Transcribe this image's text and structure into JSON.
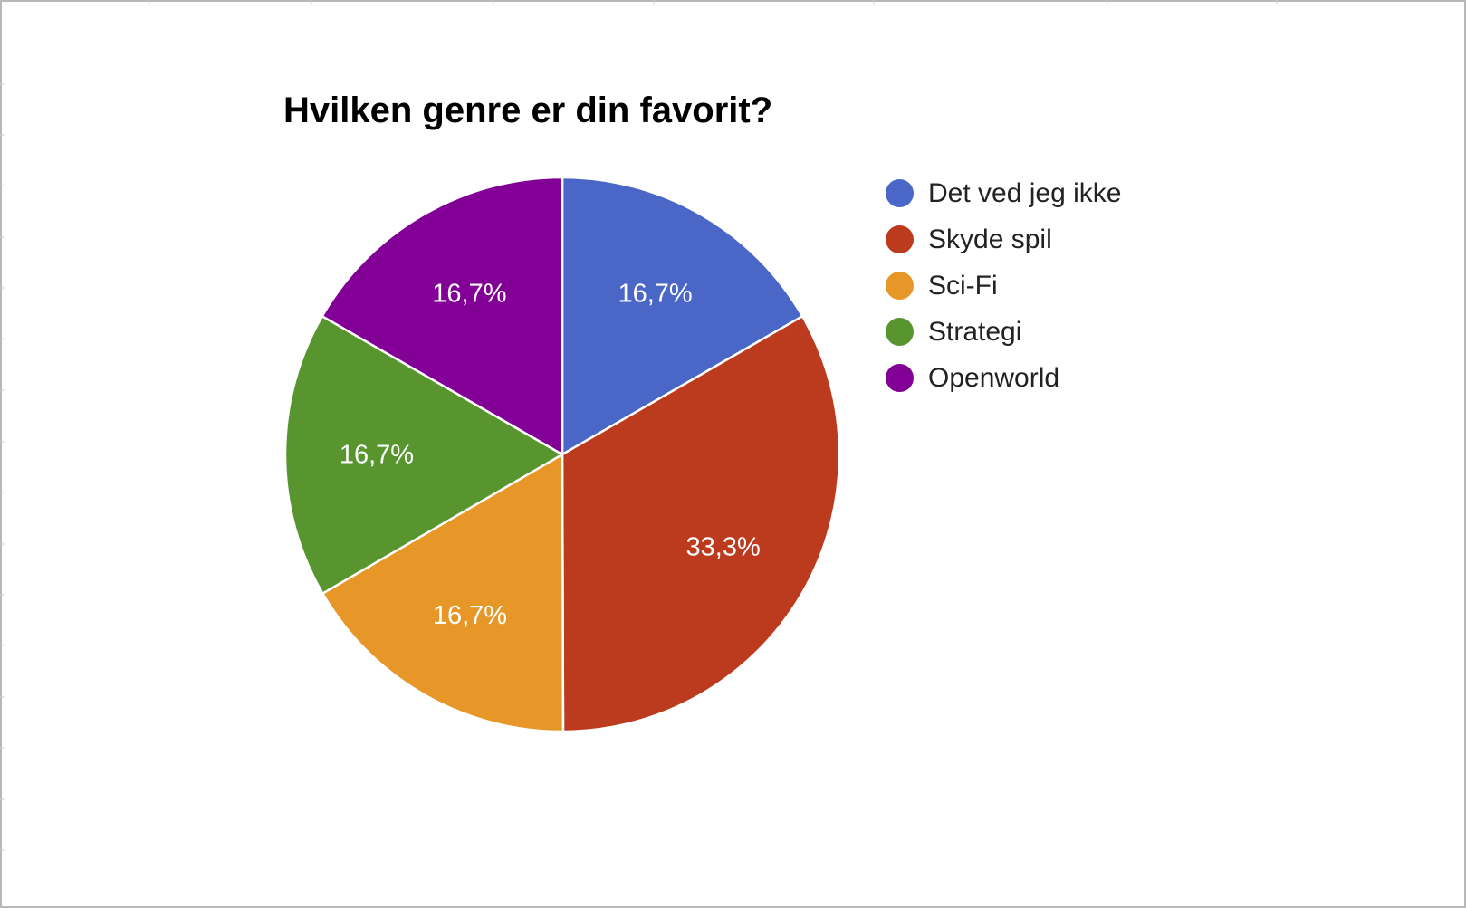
{
  "chart_data": {
    "type": "pie",
    "title": "Hvilken genre er din favorit?",
    "legend_position": "right",
    "slices": [
      {
        "label": "Det ved jeg ikke",
        "value": 16.7,
        "display": "16,7%",
        "color": "#4a67c8"
      },
      {
        "label": "Skyde spil",
        "value": 33.3,
        "display": "33,3%",
        "color": "#bc3a1d"
      },
      {
        "label": "Sci-Fi",
        "value": 16.7,
        "display": "16,7%",
        "color": "#e69727"
      },
      {
        "label": "Strategi",
        "value": 16.7,
        "display": "16,7%",
        "color": "#58952e"
      },
      {
        "label": "Openworld",
        "value": 16.7,
        "display": "16,7%",
        "color": "#830096"
      }
    ]
  }
}
